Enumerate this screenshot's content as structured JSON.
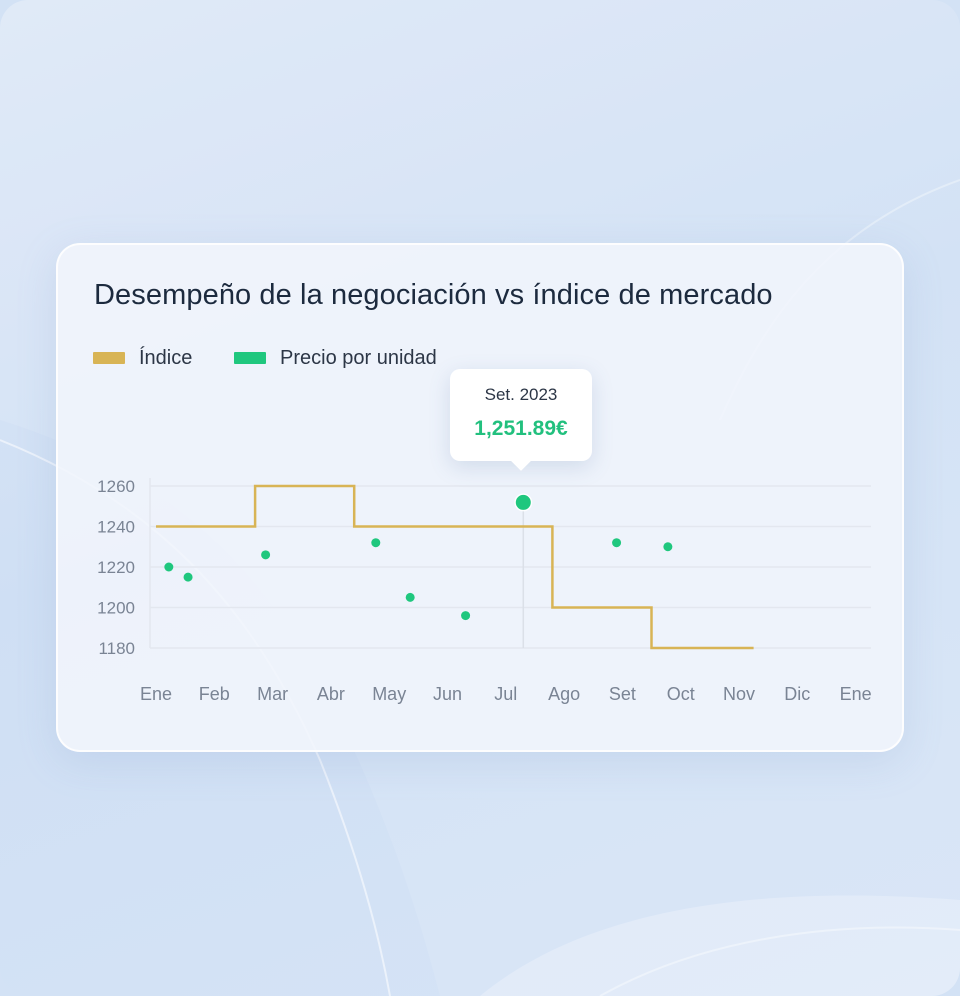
{
  "card": {
    "title": "Desempeño de la negociación vs índice de mercado"
  },
  "colors": {
    "indice": "#d8b455",
    "precio": "#1fc77e",
    "grid": "#e3e7ef",
    "axis_text": "#7a8494"
  },
  "tooltip": {
    "label": "Set. 2023",
    "value": "1,251.89€"
  },
  "chart_data": {
    "type": "line+scatter",
    "title": "Desempeño de la negociación vs índice de mercado",
    "x_labels": [
      "Ene",
      "Feb",
      "Mar",
      "Abr",
      "May",
      "Jun",
      "Jul",
      "Ago",
      "Set",
      "Oct",
      "Nov",
      "Dic",
      "Ene"
    ],
    "y_ticks": [
      1260,
      1240,
      1220,
      1200,
      1180
    ],
    "ylim": [
      1180,
      1260
    ],
    "legend": [
      {
        "name": "Índice",
        "color": "#d8b455"
      },
      {
        "name": "Precio por unidad",
        "color": "#1fc77e"
      }
    ],
    "series": [
      {
        "name": "Índice",
        "kind": "step",
        "points": [
          [
            0,
            1240
          ],
          [
            1.7,
            1240
          ],
          [
            1.7,
            1260
          ],
          [
            3.4,
            1260
          ],
          [
            3.4,
            1240
          ],
          [
            6.8,
            1240
          ],
          [
            6.8,
            1200
          ],
          [
            8.5,
            1200
          ],
          [
            8.5,
            1180
          ],
          [
            10.25,
            1180
          ]
        ]
      },
      {
        "name": "Precio por unidad",
        "kind": "scatter",
        "points": [
          [
            0.22,
            1220
          ],
          [
            0.55,
            1215
          ],
          [
            1.88,
            1226
          ],
          [
            3.77,
            1232
          ],
          [
            4.36,
            1205
          ],
          [
            5.31,
            1196
          ],
          [
            7.9,
            1232
          ],
          [
            8.78,
            1230
          ]
        ]
      }
    ],
    "highlight": {
      "x": 6.3,
      "y": 1251.89,
      "label": "Set. 2023",
      "value": "1,251.89€"
    }
  }
}
